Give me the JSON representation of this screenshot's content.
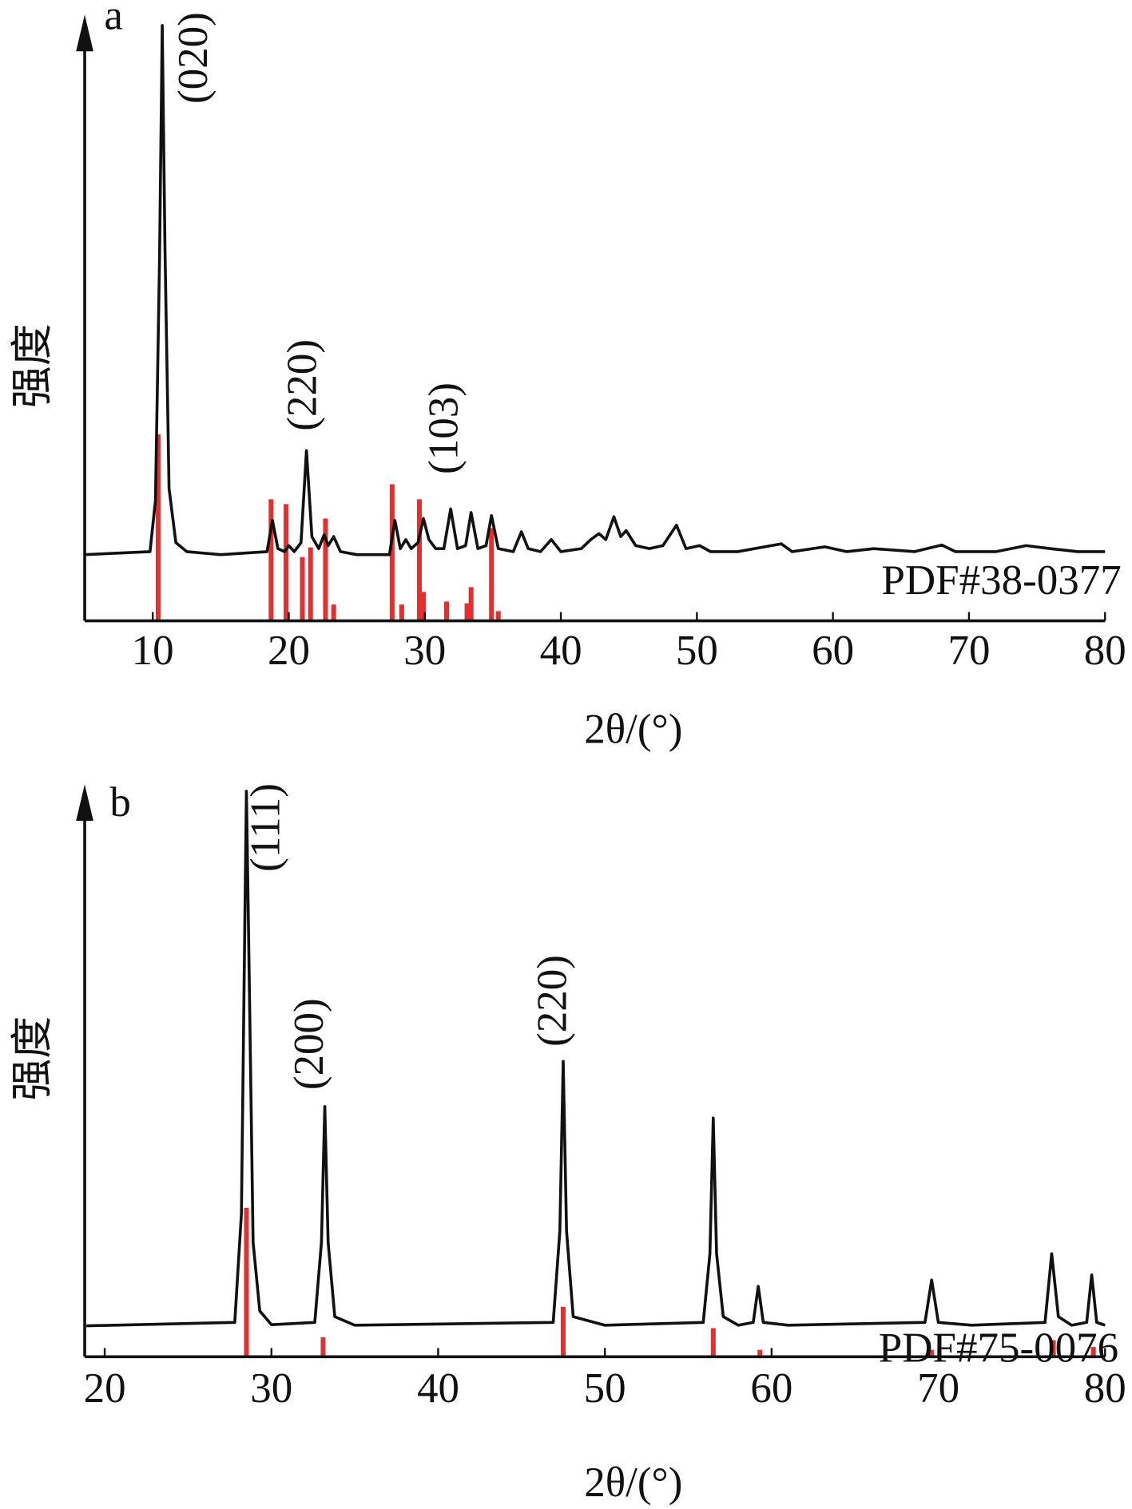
{
  "chart_data": [
    {
      "type": "line",
      "panel_label": "a",
      "x_label": "2θ/(°)",
      "y_label": "强度",
      "xlim": [
        5,
        80
      ],
      "ylim": [
        0,
        100
      ],
      "xticks": [
        10,
        20,
        30,
        40,
        50,
        60,
        70,
        80
      ],
      "annotations": [
        "(020)",
        "(220)",
        "(103)"
      ],
      "pattern": {
        "color": "#111111",
        "x": [
          5,
          9.8,
          10.2,
          10.5,
          10.7,
          10.9,
          11.2,
          11.7,
          12.5,
          15,
          18.4,
          18.8,
          19.2,
          19.7,
          20.0,
          20.4,
          20.9,
          21.3,
          21.7,
          22.2,
          22.6,
          22.9,
          23.3,
          23.8,
          25,
          27.4,
          27.8,
          28.2,
          28.6,
          29.0,
          29.5,
          29.9,
          30.3,
          30.8,
          31.4,
          31.9,
          32.4,
          33.0,
          33.4,
          33.9,
          34.5,
          34.9,
          35.4,
          36.5,
          37.1,
          37.6,
          38.5,
          39.3,
          40,
          41.5,
          42.2,
          42.8,
          43.3,
          43.9,
          44.4,
          44.8,
          45.5,
          46.5,
          47.5,
          48.5,
          49.2,
          50.2,
          51,
          53,
          56.2,
          57,
          59.4,
          61,
          63,
          66,
          68,
          69,
          72,
          74.2,
          76,
          78,
          80
        ],
        "values": [
          11,
          11.5,
          20,
          60,
          99,
          62,
          22,
          13,
          11.5,
          11,
          11.5,
          16.7,
          12,
          11.5,
          12.5,
          11.5,
          13,
          28.3,
          14,
          12,
          14.3,
          12.5,
          14,
          11.5,
          11,
          11,
          16.7,
          12,
          13.5,
          12,
          13,
          17,
          13.5,
          12,
          12,
          18.6,
          12,
          12.5,
          18,
          12,
          12.5,
          17.5,
          12,
          11.5,
          14.8,
          12,
          11.5,
          13.5,
          11.5,
          12,
          13.5,
          14.5,
          13.5,
          17.3,
          14,
          15,
          12.5,
          12,
          12.5,
          15.9,
          12,
          12.5,
          11.5,
          11.5,
          12.8,
          11.5,
          12.3,
          11.5,
          12,
          11.5,
          12.6,
          11.5,
          11.5,
          12.5,
          12,
          11.5,
          11.5
        ]
      },
      "reference": {
        "name": "PDF#38-0377",
        "color": "#e03030",
        "x": [
          10.4,
          18.7,
          19.8,
          21.0,
          21.6,
          22.7,
          23.3,
          27.6,
          28.3,
          29.6,
          29.9,
          31.6,
          33.1,
          33.4,
          34.9,
          35.4
        ],
        "values": [
          31,
          20.2,
          19.4,
          10.6,
          12.2,
          17,
          2.7,
          22.7,
          2.7,
          20.2,
          4.8,
          3.2,
          2.9,
          5.6,
          15.4,
          1.6
        ]
      }
    },
    {
      "type": "line",
      "panel_label": "b",
      "x_label": "2θ/(°)",
      "y_label": "强度",
      "xlim": [
        18.8,
        80
      ],
      "ylim": [
        0,
        100
      ],
      "xticks": [
        20,
        30,
        40,
        50,
        60,
        70,
        80
      ],
      "annotations": [
        "(111)",
        "(200)",
        "(220)"
      ],
      "pattern": {
        "color": "#111111",
        "x": [
          18.9,
          27.8,
          28.2,
          28.4,
          28.5,
          28.7,
          28.9,
          29.3,
          30,
          32.6,
          33.0,
          33.2,
          33.4,
          33.8,
          35,
          46.9,
          47.3,
          47.5,
          47.7,
          48.1,
          50,
          55.9,
          56.3,
          56.5,
          56.7,
          57.1,
          58,
          58.9,
          59.2,
          59.5,
          61,
          69.2,
          69.6,
          70,
          72,
          76.4,
          76.8,
          77.2,
          78,
          78.9,
          79.2,
          79.5,
          80
        ],
        "values": [
          5.4,
          6,
          25,
          75,
          98.8,
          60,
          20,
          8,
          5.6,
          6,
          20,
          43.7,
          20,
          7,
          5.5,
          6,
          22,
          51.6,
          22,
          7,
          5.5,
          6,
          18,
          41.7,
          18,
          7,
          5.5,
          6,
          12.3,
          6,
          5.5,
          6,
          13.4,
          6,
          5.5,
          6,
          18,
          7,
          5.5,
          6,
          14.3,
          6,
          5.5
        ]
      },
      "reference": {
        "name": "PDF#75-0076",
        "color": "#e03030",
        "x": [
          28.5,
          33.1,
          47.5,
          56.5,
          59.3,
          69.6,
          76.9,
          79.3
        ],
        "values": [
          26,
          3.4,
          8.7,
          5,
          1.2,
          1.2,
          2.9,
          1.7
        ]
      }
    }
  ]
}
